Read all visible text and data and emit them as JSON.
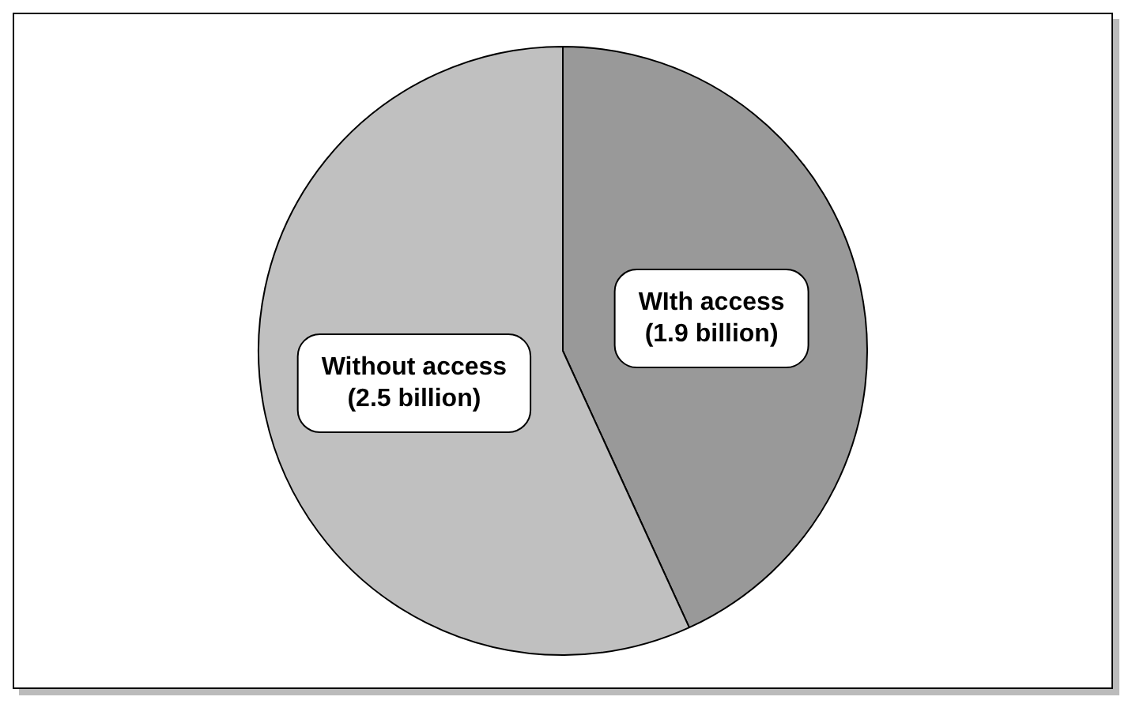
{
  "chart_data": {
    "type": "pie",
    "categories": [
      "WIth access",
      "Without access"
    ],
    "values": [
      1.9,
      2.5
    ],
    "value_labels": [
      "(1.9 billion)",
      "(2.5 billion)"
    ],
    "colors": [
      "#999999",
      "#c0c0c0"
    ],
    "legend": false
  }
}
